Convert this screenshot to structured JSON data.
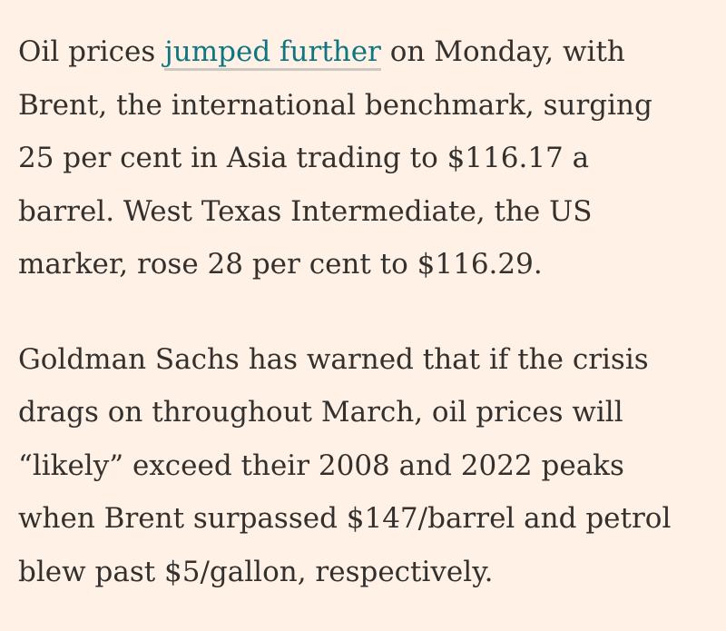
{
  "colors": {
    "background": "#fff1e5",
    "text": "#33302e",
    "link": "#0d7680"
  },
  "paragraphs": [
    {
      "line1": {
        "before": "Oil prices ",
        "link": "jumped further",
        "after": " on Monday, with"
      },
      "lines": [
        "Brent, the international benchmark, surging",
        "25 per cent in Asia trading to $116.17 a",
        "barrel. West Texas Intermediate, the US",
        "marker, rose 28 per cent to $116.29."
      ]
    },
    {
      "lines": [
        "Goldman Sachs has warned that if the crisis",
        "drags on throughout March, oil prices will",
        "“likely” exceed their 2008 and 2022 peaks",
        "when Brent surpassed $147/barrel and petrol",
        "blew past $5/gallon, respectively."
      ]
    }
  ]
}
